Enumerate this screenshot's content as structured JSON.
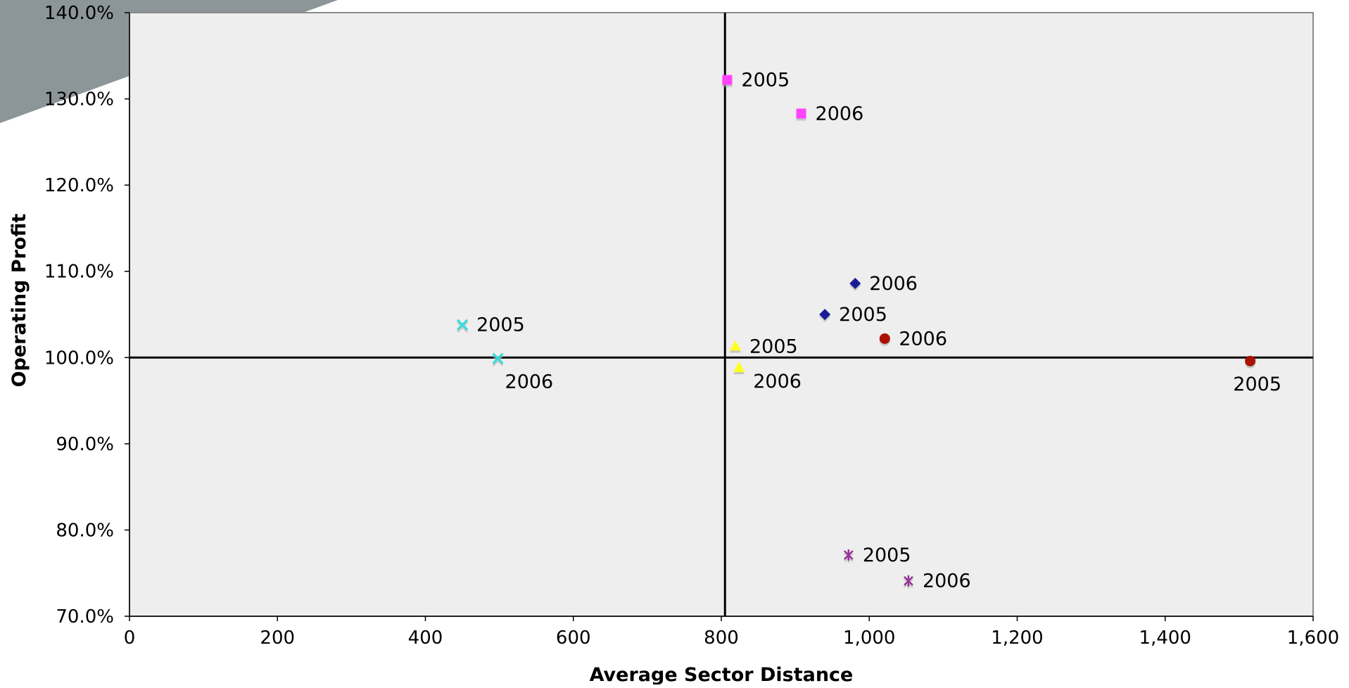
{
  "chart_data": {
    "type": "scatter",
    "title": "",
    "xlabel": "Average Sector Distance",
    "ylabel": "Operating Profit",
    "xlim": [
      0,
      1600
    ],
    "ylim": [
      70,
      140
    ],
    "x_ticks": [
      "0",
      "200",
      "400",
      "600",
      "800",
      "1,000",
      "1,200",
      "1,400",
      "1,600"
    ],
    "y_ticks": [
      "70.0%",
      "80.0%",
      "90.0%",
      "100.0%",
      "110.0%",
      "120.0%",
      "130.0%",
      "140.0%"
    ],
    "x_tick_values": [
      0,
      200,
      400,
      600,
      800,
      1000,
      1200,
      1400,
      1600
    ],
    "y_tick_values": [
      70,
      80,
      90,
      100,
      110,
      120,
      130,
      140
    ],
    "reference_lines": {
      "x": 805,
      "y": 100
    },
    "grid": false,
    "legend": "none",
    "series": [
      {
        "marker": "square",
        "color": "#ff44ff",
        "points": [
          {
            "x": 808,
            "y": 132.2,
            "label": "2005",
            "label_pos": "right"
          },
          {
            "x": 908,
            "y": 128.3,
            "label": "2006",
            "label_pos": "right"
          }
        ]
      },
      {
        "marker": "diamond",
        "color": "#1a1a99",
        "points": [
          {
            "x": 940,
            "y": 105.0,
            "label": "2005",
            "label_pos": "right"
          },
          {
            "x": 981,
            "y": 108.6,
            "label": "2006",
            "label_pos": "right"
          }
        ]
      },
      {
        "marker": "circle",
        "color": "#aa1100",
        "points": [
          {
            "x": 1515,
            "y": 99.6,
            "label": "2005",
            "label_pos": "below"
          },
          {
            "x": 1021,
            "y": 102.2,
            "label": "2006",
            "label_pos": "right"
          }
        ]
      },
      {
        "marker": "triangle",
        "color": "#ffff22",
        "points": [
          {
            "x": 819,
            "y": 101.3,
            "label": "2005",
            "label_pos": "right"
          },
          {
            "x": 824,
            "y": 98.8,
            "label": "2006",
            "label_pos": "right-below"
          }
        ]
      },
      {
        "marker": "x",
        "color": "#33dddd",
        "points": [
          {
            "x": 450,
            "y": 103.8,
            "label": "2005",
            "label_pos": "right"
          },
          {
            "x": 498,
            "y": 99.9,
            "label": "2006",
            "label_pos": "below"
          }
        ]
      },
      {
        "marker": "star",
        "color": "#993399",
        "points": [
          {
            "x": 972,
            "y": 77.1,
            "label": "2005",
            "label_pos": "right"
          },
          {
            "x": 1053,
            "y": 74.1,
            "label": "2006",
            "label_pos": "right"
          }
        ]
      }
    ]
  }
}
